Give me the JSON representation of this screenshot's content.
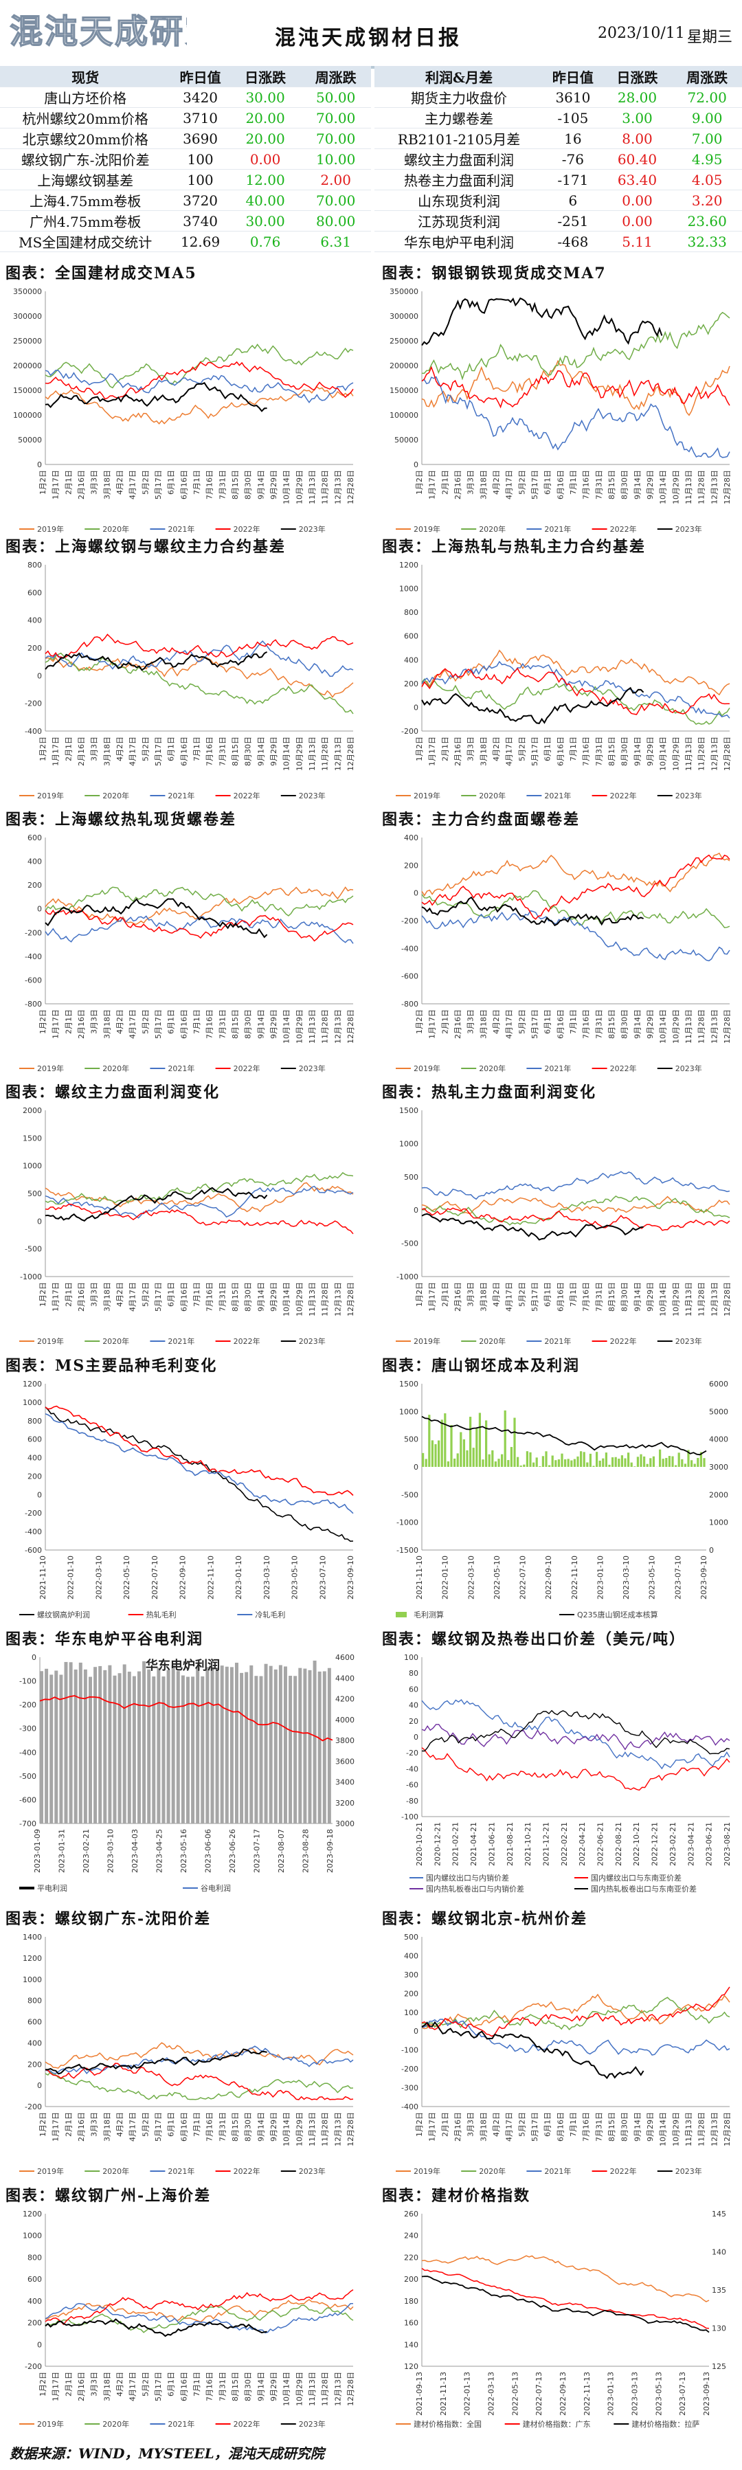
{
  "header": {
    "logo_text": "混沌天成研究院",
    "title": "混沌天成钢材日报",
    "date": "2023/10/11",
    "weekday": "星期三"
  },
  "colors": {
    "c2019": "#ed7d31",
    "c2020": "#70ad47",
    "c2021": "#4472c4",
    "c2022": "#ff0000",
    "c2023": "#000000"
  },
  "left_table": {
    "headers": [
      "现货",
      "昨日值",
      "日涨跌",
      "周涨跌"
    ],
    "rows": [
      {
        "name": "唐山方坯价格",
        "prev": "3420",
        "day": "30.00",
        "day_c": "green",
        "week": "50.00",
        "week_c": "green"
      },
      {
        "name": "杭州螺纹20mm价格",
        "prev": "3710",
        "day": "20.00",
        "day_c": "green",
        "week": "70.00",
        "week_c": "green"
      },
      {
        "name": "北京螺纹20mm价格",
        "prev": "3690",
        "day": "20.00",
        "day_c": "green",
        "week": "70.00",
        "week_c": "green"
      },
      {
        "name": "螺纹钢广东-沈阳价差",
        "prev": "100",
        "day": "0.00",
        "day_c": "red",
        "week": "10.00",
        "week_c": "green"
      },
      {
        "name": "上海螺纹钢基差",
        "prev": "100",
        "day": "12.00",
        "day_c": "green",
        "week": "2.00",
        "week_c": "red"
      },
      {
        "name": "上海4.75mm卷板",
        "prev": "3720",
        "day": "40.00",
        "day_c": "green",
        "week": "70.00",
        "week_c": "green"
      },
      {
        "name": "广州4.75mm卷板",
        "prev": "3740",
        "day": "30.00",
        "day_c": "green",
        "week": "80.00",
        "week_c": "green"
      },
      {
        "name": "MS全国建材成交统计",
        "prev": "12.69",
        "day": "0.76",
        "day_c": "green",
        "week": "6.31",
        "week_c": "green"
      }
    ]
  },
  "right_table": {
    "headers": [
      "利润&月差",
      "昨日值",
      "日涨跌",
      "周涨跌"
    ],
    "rows": [
      {
        "name": "期货主力收盘价",
        "prev": "3610",
        "day": "28.00",
        "day_c": "green",
        "week": "72.00",
        "week_c": "green"
      },
      {
        "name": "主力螺卷差",
        "prev": "-105",
        "day": "3.00",
        "day_c": "green",
        "week": "9.00",
        "week_c": "green"
      },
      {
        "name": "RB2101-2105月差",
        "prev": "16",
        "day": "8.00",
        "day_c": "red",
        "week": "7.00",
        "week_c": "green"
      },
      {
        "name": "螺纹主力盘面利润",
        "prev": "-76",
        "day": "60.40",
        "day_c": "red",
        "week": "4.95",
        "week_c": "green"
      },
      {
        "name": "热卷主力盘面利润",
        "prev": "-171",
        "day": "63.40",
        "day_c": "red",
        "week": "4.05",
        "week_c": "red"
      },
      {
        "name": "山东现货利润",
        "prev": "6",
        "day": "0.00",
        "day_c": "red",
        "week": "3.20",
        "week_c": "red"
      },
      {
        "name": "江苏现货利润",
        "prev": "-251",
        "day": "0.00",
        "day_c": "red",
        "week": "23.60",
        "week_c": "green"
      },
      {
        "name": "华东电炉平电利润",
        "prev": "-468",
        "day": "5.11",
        "day_c": "red",
        "week": "32.33",
        "week_c": "green"
      }
    ]
  },
  "sections": [
    {
      "id": "s1",
      "title": "图表：全国建材成交MA5"
    },
    {
      "id": "s2",
      "title": "图表：钢银钢铁现货成交MA7"
    },
    {
      "id": "s3",
      "title": "图表：上海螺纹钢与螺纹主力合约基差"
    },
    {
      "id": "s4",
      "title": "图表：上海热轧与热轧主力合约基差"
    },
    {
      "id": "s5",
      "title": "图表：上海螺纹热轧现货螺卷差"
    },
    {
      "id": "s6",
      "title": "图表：主力合约盘面螺卷差"
    },
    {
      "id": "s7",
      "title": "图表：螺纹主力盘面利润变化"
    },
    {
      "id": "s8",
      "title": "图表：热轧主力盘面利润变化"
    },
    {
      "id": "s9",
      "title": "图表：MS主要品种毛利变化"
    },
    {
      "id": "s10",
      "title": "图表：唐山钢坯成本及利润"
    },
    {
      "id": "s11",
      "title": "图表：华东电炉平谷电利润"
    },
    {
      "id": "s12",
      "title": "图表：螺纹钢及热卷出口价差（美元/吨）"
    },
    {
      "id": "s13",
      "title": "图表：螺纹钢广东-沈阳价差"
    },
    {
      "id": "s14",
      "title": "图表：螺纹钢北京-杭州价差"
    },
    {
      "id": "s15",
      "title": "图表：螺纹钢广州-上海价差"
    },
    {
      "id": "s16",
      "title": "图表：建材价格指数"
    }
  ],
  "legend_years": [
    "2019年",
    "2020年",
    "2021年",
    "2022年",
    "2023年"
  ],
  "charts": {
    "c1": {
      "ylabels": [
        "350000",
        "300000",
        "250000",
        "200000",
        "150000",
        "100000",
        "50000",
        "0"
      ]
    },
    "c2": {
      "ylabels": [
        "350000",
        "300000",
        "250000",
        "200000",
        "150000",
        "100000",
        "50000",
        "0"
      ]
    },
    "c3": {
      "ylabels": [
        "800",
        "600",
        "400",
        "200",
        "0",
        "-200",
        "-400"
      ]
    },
    "c4": {
      "ylabels": [
        "1200",
        "1000",
        "800",
        "600",
        "400",
        "200",
        "0",
        "-200"
      ]
    },
    "c5": {
      "ylabels": [
        "600",
        "400",
        "200",
        "0",
        "-200",
        "-400",
        "-600",
        "-800"
      ]
    },
    "c6": {
      "ylabels": [
        "400",
        "200",
        "0",
        "-200",
        "-400",
        "-600",
        "-800"
      ]
    },
    "c7": {
      "ylabels": [
        "2000",
        "1500",
        "1000",
        "500",
        "0",
        "-500",
        "-1000"
      ]
    },
    "c8": {
      "ylabels": [
        "1500",
        "1000",
        "500",
        "0",
        "-500",
        "-1000"
      ]
    },
    "c9": {
      "ylabels": [
        "1200",
        "1000",
        "800",
        "600",
        "400",
        "200",
        "0",
        "-200",
        "-400",
        "-600"
      ],
      "legend": [
        "螺纹钢高炉利润",
        "热轧毛利",
        "冷轧毛利"
      ]
    },
    "c10": {
      "ylabels": [
        "1500",
        "1000",
        "500",
        "0",
        "-500",
        "-1000",
        "-1500"
      ],
      "y2labels": [
        "6000",
        "5000",
        "4000",
        "3000",
        "2000",
        "1000",
        "0"
      ],
      "legend": [
        "毛利测算",
        "Q235唐山钢坯成本核算"
      ]
    },
    "c11": {
      "inner_title": "华东电炉利润",
      "ylabels": [
        "0",
        "-100",
        "-200",
        "-300",
        "-400",
        "-500",
        "-600",
        "-700"
      ],
      "y2labels": [
        "4600",
        "4400",
        "4200",
        "4000",
        "3800",
        "3600",
        "3400",
        "3200",
        "3000"
      ],
      "legend": [
        "平电利润",
        "谷电利润"
      ]
    },
    "c12": {
      "ylabels": [
        "100",
        "80",
        "60",
        "40",
        "20",
        "0",
        "-20",
        "-40",
        "-60",
        "-80",
        "-100"
      ],
      "legend": [
        "国内螺纹出口与内销价差",
        "国内螺纹出口与东南亚价差",
        "国内热轧板卷出口与内销价差",
        "国内热轧板卷出口与东南亚价差"
      ]
    },
    "c13": {
      "ylabels": [
        "1400",
        "1200",
        "1000",
        "800",
        "600",
        "400",
        "200",
        "0",
        "-200"
      ]
    },
    "c14": {
      "ylabels": [
        "500",
        "400",
        "300",
        "200",
        "100",
        "0",
        "-100",
        "-200",
        "-300",
        "-400"
      ]
    },
    "c15": {
      "ylabels": [
        "1200",
        "1000",
        "800",
        "600",
        "400",
        "200",
        "0",
        "-200"
      ]
    },
    "c16": {
      "ylabels": [
        "260",
        "240",
        "220",
        "200",
        "180",
        "160",
        "140",
        "120"
      ],
      "y2labels": [
        "145",
        "140",
        "135",
        "130",
        "125"
      ],
      "legend": [
        "建材价格指数：全国",
        "建材价格指数：广东",
        "建材价格指数：拉萨"
      ]
    }
  },
  "footer": "数据来源：WIND，MYSTEEL，混沌天成研究院"
}
